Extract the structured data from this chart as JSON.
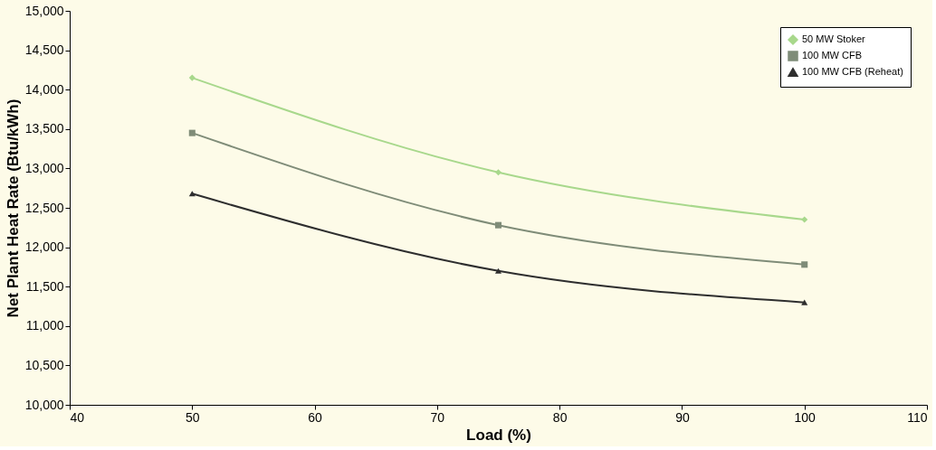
{
  "chart_data": {
    "type": "line",
    "xlabel": "Load (%)",
    "ylabel": "Net Plant Heat Rate (Btu/kWh)",
    "x": [
      50,
      75,
      100
    ],
    "series": [
      {
        "name": "50 MW Stoker",
        "color": "#a8d88c",
        "marker": "diamond",
        "values": [
          14150,
          12950,
          12350
        ]
      },
      {
        "name": "100 MW CFB",
        "color": "#7f8c78",
        "marker": "square",
        "values": [
          13450,
          12280,
          11780
        ]
      },
      {
        "name": "100 MW CFB (Reheat)",
        "color": "#2e2e2e",
        "marker": "triangle",
        "values": [
          12680,
          11700,
          11300
        ]
      }
    ],
    "xlim": [
      40,
      110
    ],
    "xticks": [
      40,
      50,
      60,
      70,
      80,
      90,
      100,
      110
    ],
    "ylim": [
      10000,
      15000
    ],
    "yticks": [
      {
        "value": 10000,
        "label": "10,000"
      },
      {
        "value": 10500,
        "label": "10,500"
      },
      {
        "value": 11000,
        "label": "11,000"
      },
      {
        "value": 11500,
        "label": "11,500"
      },
      {
        "value": 12000,
        "label": "12,000"
      },
      {
        "value": 12500,
        "label": "12,500"
      },
      {
        "value": 13000,
        "label": "13,000"
      },
      {
        "value": 13500,
        "label": "13,500"
      },
      {
        "value": 14000,
        "label": "14,000"
      },
      {
        "value": 14500,
        "label": "14,500"
      },
      {
        "value": 15000,
        "label": "15,000"
      }
    ],
    "grid": false,
    "legend": "top right",
    "line_style": "solid"
  }
}
